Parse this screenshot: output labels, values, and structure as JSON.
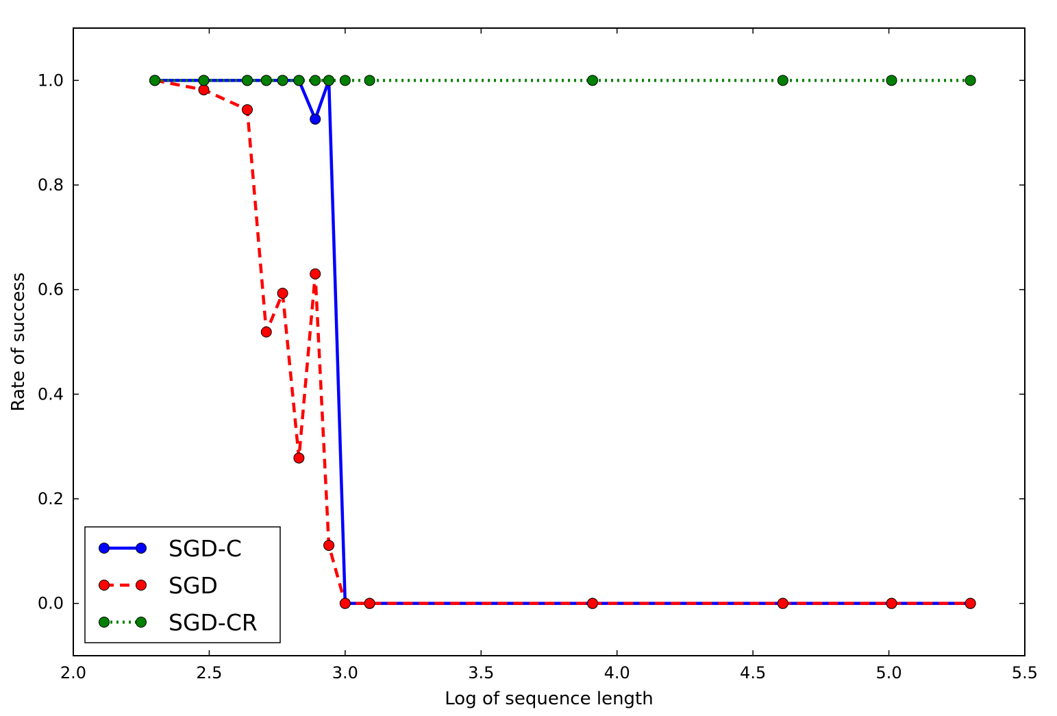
{
  "chart_data": {
    "type": "line",
    "title": "",
    "xlabel": "Log of sequence length",
    "ylabel": "Rate of success",
    "xlim": [
      2.0,
      5.5
    ],
    "ylim": [
      -0.1,
      1.1
    ],
    "xticks": [
      "2.0",
      "2.5",
      "3.0",
      "3.5",
      "4.0",
      "4.5",
      "5.0",
      "5.5"
    ],
    "yticks": [
      "0.0",
      "0.2",
      "0.4",
      "0.6",
      "0.8",
      "1.0"
    ],
    "grid": false,
    "legend_position": "lower-left",
    "series": [
      {
        "name": "SGD-C",
        "color": "#0000ff",
        "line_style": "solid",
        "marker": "circle",
        "x": [
          2.3,
          2.48,
          2.64,
          2.71,
          2.77,
          2.83,
          2.89,
          2.94,
          3.0,
          3.09,
          3.91,
          4.61,
          5.01,
          5.3
        ],
        "y": [
          1.0,
          1.0,
          1.0,
          1.0,
          1.0,
          1.0,
          0.926,
          1.0,
          0.0,
          0.0,
          0.0,
          0.0,
          0.0,
          0.0
        ]
      },
      {
        "name": "SGD",
        "color": "#ff0000",
        "line_style": "dashed",
        "marker": "circle",
        "x": [
          2.3,
          2.48,
          2.64,
          2.71,
          2.77,
          2.83,
          2.89,
          2.94,
          3.0,
          3.09,
          3.91,
          4.61,
          5.01,
          5.3
        ],
        "y": [
          1.0,
          0.982,
          0.944,
          0.519,
          0.593,
          0.278,
          0.63,
          0.111,
          0.0,
          0.0,
          0.0,
          0.0,
          0.0,
          0.0
        ]
      },
      {
        "name": "SGD-CR",
        "color": "#008000",
        "line_style": "dotted",
        "marker": "circle",
        "x": [
          2.3,
          2.48,
          2.64,
          2.71,
          2.77,
          2.83,
          2.89,
          2.94,
          3.0,
          3.09,
          3.91,
          4.61,
          5.01,
          5.3
        ],
        "y": [
          1.0,
          1.0,
          1.0,
          1.0,
          1.0,
          1.0,
          1.0,
          1.0,
          1.0,
          1.0,
          1.0,
          1.0,
          1.0,
          1.0
        ]
      }
    ]
  }
}
